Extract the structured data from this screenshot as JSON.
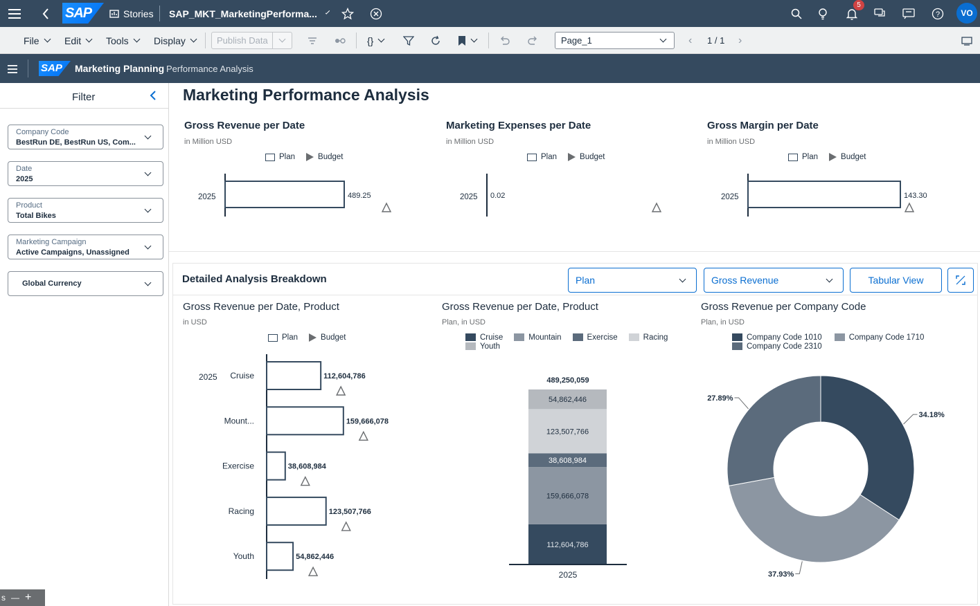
{
  "topbar": {
    "stories_label": "Stories",
    "document_title": "SAP_MKT_MarketingPerforma...",
    "notification_count": "5",
    "avatar_initials": "VO"
  },
  "toolbar": {
    "file": "File",
    "edit": "Edit",
    "tools": "Tools",
    "display": "Display",
    "publish_data": "Publish Data",
    "page_select": "Page_1",
    "page_counter": "1 / 1"
  },
  "appbar": {
    "app_name": "Marketing Planning",
    "page_name": "Performance Analysis"
  },
  "filter": {
    "title": "Filter",
    "fields": [
      {
        "label": "Company Code",
        "value": "BestRun DE, BestRun US, Com..."
      },
      {
        "label": "Date",
        "value": "2025"
      },
      {
        "label": "Product",
        "value": "Total Bikes"
      },
      {
        "label": "Marketing Campaign",
        "value": "Active Campaigns, Unassigned"
      }
    ],
    "global_currency": "Global Currency"
  },
  "page_title": "Marketing Performance Analysis",
  "kpi_charts": [
    {
      "title": "Gross Revenue per Date",
      "subtitle": "in Million USD",
      "legend_plan": "Plan",
      "legend_budget": "Budget",
      "category": "2025",
      "value_label": "489.25"
    },
    {
      "title": "Marketing Expenses per Date",
      "subtitle": "in Million USD",
      "legend_plan": "Plan",
      "legend_budget": "Budget",
      "category": "2025",
      "value_label": "0.02"
    },
    {
      "title": "Gross Margin per Date",
      "subtitle": "in Million USD",
      "legend_plan": "Plan",
      "legend_budget": "Budget",
      "category": "2025",
      "value_label": "143.30"
    }
  ],
  "breakdown": {
    "title": "Detailed Analysis Breakdown",
    "version_dropdown": "Plan",
    "measure_dropdown": "Gross Revenue",
    "tabular_button": "Tabular View"
  },
  "bar_chart": {
    "title": "Gross Revenue per Date, Product",
    "subtitle": "in USD",
    "legend_plan": "Plan",
    "legend_budget": "Budget",
    "year": "2025"
  },
  "stack_chart": {
    "title": "Gross Revenue per Date, Product",
    "subtitle": "Plan, in USD",
    "total_label": "489,250,059",
    "x_label": "2025"
  },
  "donut_chart": {
    "title": "Gross Revenue per Company Code",
    "subtitle": "Plan, in USD"
  },
  "chart_data": [
    {
      "type": "bar",
      "title": "Gross Revenue per Date",
      "categories": [
        "2025"
      ],
      "series": [
        {
          "name": "Plan",
          "values": [
            489.25
          ]
        }
      ],
      "unit": "Million USD"
    },
    {
      "type": "bar",
      "title": "Marketing Expenses per Date",
      "categories": [
        "2025"
      ],
      "series": [
        {
          "name": "Plan",
          "values": [
            0.02
          ]
        }
      ],
      "unit": "Million USD"
    },
    {
      "type": "bar",
      "title": "Gross Margin per Date",
      "categories": [
        "2025"
      ],
      "series": [
        {
          "name": "Plan",
          "values": [
            143.3
          ]
        }
      ],
      "unit": "Million USD"
    },
    {
      "type": "bar",
      "title": "Gross Revenue per Date, Product",
      "categories": [
        "Cruise",
        "Mount...",
        "Exercise",
        "Racing",
        "Youth"
      ],
      "series": [
        {
          "name": "Plan",
          "values": [
            112604786,
            159666078,
            38608984,
            123507766,
            54862446
          ],
          "labels": [
            "112,604,786",
            "159,666,078",
            "38,608,984",
            "123,507,766",
            "54,862,446"
          ]
        }
      ]
    },
    {
      "type": "bar",
      "title": "Gross Revenue per Date, Product",
      "stacked": true,
      "categories": [
        "2025"
      ],
      "series": [
        {
          "name": "Cruise",
          "values": [
            112604786
          ],
          "label": "112,604,786",
          "color": "#354a5f"
        },
        {
          "name": "Mountain",
          "values": [
            159666078
          ],
          "label": "159,666,078",
          "color": "#8c96a2"
        },
        {
          "name": "Exercise",
          "values": [
            38608984
          ],
          "label": "38,608,984",
          "color": "#5b6b7c"
        },
        {
          "name": "Racing",
          "values": [
            123507766
          ],
          "label": "123,507,766",
          "color": "#d0d3d7"
        },
        {
          "name": "Youth",
          "values": [
            54862446
          ],
          "label": "54,862,446",
          "color": "#b5b9be"
        }
      ]
    },
    {
      "type": "pie",
      "title": "Gross Revenue per Company Code",
      "slices": [
        {
          "name": "Company Code 1010",
          "value": 34.18,
          "label": "34.18%",
          "color": "#354a5f"
        },
        {
          "name": "Company Code 1710",
          "value": 37.93,
          "label": "37.93%",
          "color": "#8c96a2"
        },
        {
          "name": "Company Code 2310",
          "value": 27.89,
          "label": "27.89%",
          "color": "#5b6b7c"
        }
      ]
    }
  ]
}
